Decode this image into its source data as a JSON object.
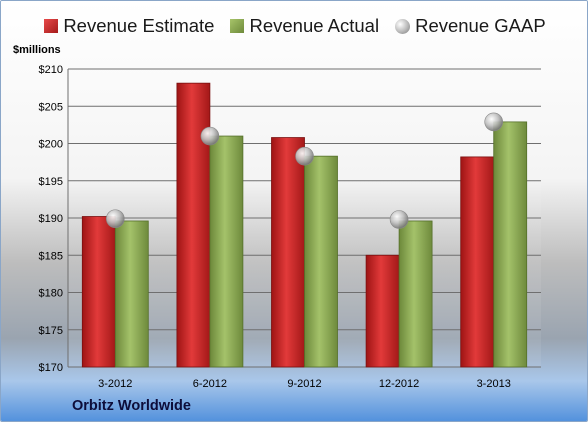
{
  "chart_data": {
    "type": "bar",
    "ylabel": "$millions",
    "categories": [
      "3-2012",
      "6-2012",
      "9-2012",
      "12-2012",
      "3-2013"
    ],
    "series": [
      {
        "name": "Revenue Estimate",
        "values": [
          190.2,
          208.1,
          200.8,
          185.0,
          198.2
        ],
        "color": "#c82828"
      },
      {
        "name": "Revenue Actual",
        "values": [
          189.6,
          201.0,
          198.3,
          189.6,
          202.9
        ],
        "color": "#8eac56"
      },
      {
        "name": "Revenue GAAP",
        "values": [
          189.9,
          201.0,
          198.3,
          189.8,
          202.9
        ],
        "color": "#b0b0b0",
        "marker": "circle"
      }
    ],
    "ylim": [
      170,
      210
    ],
    "yticks": [
      170,
      175,
      180,
      185,
      190,
      195,
      200,
      205,
      210
    ],
    "ytick_labels": [
      "$170",
      "$175",
      "$180",
      "$185",
      "$190",
      "$195",
      "$200",
      "$205",
      "$210"
    ],
    "grid": true,
    "legend_position": "top",
    "footer": "Orbitz Worldwide"
  }
}
